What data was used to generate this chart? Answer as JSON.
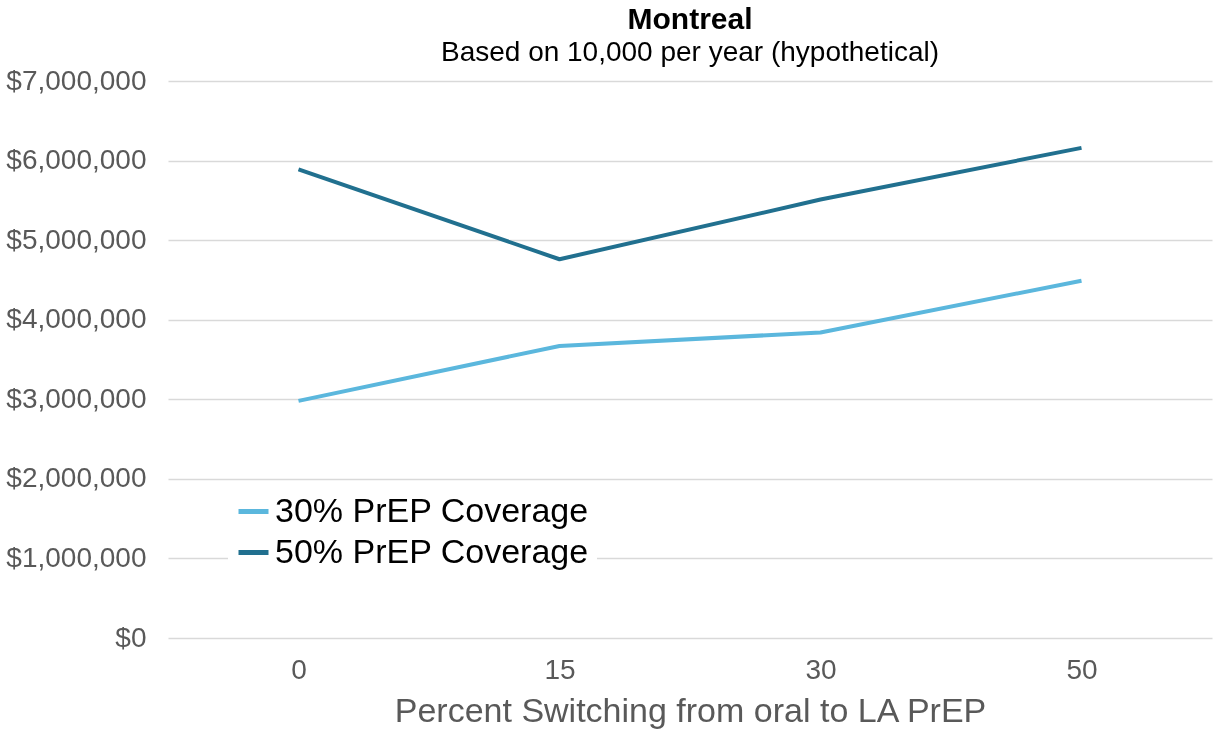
{
  "chart_data": {
    "type": "line",
    "title": "Montreal",
    "subtitle": "Based on 10,000 per year (hypothetical)",
    "xlabel": "Percent Switching from oral to LA PrEP",
    "categories": [
      "0",
      "15",
      "30",
      "50"
    ],
    "series": [
      {
        "name": "30% PrEP Coverage",
        "color": "#5bb7dd",
        "values": [
          2980000,
          3670000,
          3840000,
          4490000
        ]
      },
      {
        "name": "50% PrEP Coverage",
        "color": "#21708f",
        "values": [
          5890000,
          4760000,
          5510000,
          6160000
        ]
      }
    ],
    "ylim": [
      0,
      7000000
    ],
    "yticks": [
      {
        "value": 0,
        "label": "$0"
      },
      {
        "value": 1000000,
        "label": "$1,000,000"
      },
      {
        "value": 2000000,
        "label": "$2,000,000"
      },
      {
        "value": 3000000,
        "label": "$3,000,000"
      },
      {
        "value": 4000000,
        "label": "$4,000,000"
      },
      {
        "value": 5000000,
        "label": "$5,000,000"
      },
      {
        "value": 6000000,
        "label": "$6,000,000"
      },
      {
        "value": 7000000,
        "label": "$7,000,000"
      }
    ],
    "grid": "y",
    "legend": "bottom left",
    "marker": "none",
    "line_style": "solid"
  }
}
